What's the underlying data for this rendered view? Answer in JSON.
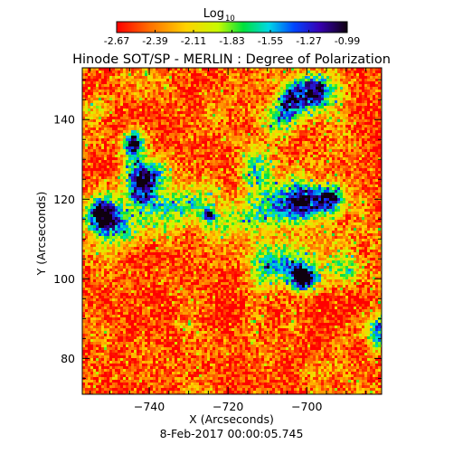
{
  "chart_data": {
    "type": "heatmap",
    "title": "Hinode SOT/SP - MERLIN : Degree of Polarization",
    "colorbar": {
      "title_base": "Log",
      "title_subscript": "10",
      "ticks": [
        "-2.67",
        "-2.39",
        "-2.11",
        "-1.83",
        "-1.55",
        "-1.27",
        "-0.99"
      ],
      "range": [
        -2.67,
        -0.99
      ],
      "colormap": "rainbow (red to violet/black)"
    },
    "xlabel": "X (Arcseconds)",
    "ylabel": "Y (Arcseconds)",
    "xlim": [
      -757,
      -681
    ],
    "ylim": [
      71,
      153
    ],
    "xticks": [
      -740,
      -720,
      -700
    ],
    "yticks": [
      80,
      100,
      120,
      140
    ],
    "date_label": "8-Feb-2017 00:00:05.745",
    "background_level": -2.5,
    "features": [
      {
        "x": -744,
        "y": 134,
        "sx": 1.8,
        "sy": 2.4,
        "amp": 1.7
      },
      {
        "x": -742,
        "y": 124,
        "sx": 2.8,
        "sy": 3.5,
        "amp": 1.2
      },
      {
        "x": -739,
        "y": 127,
        "sx": 4.0,
        "sy": 3.0,
        "amp": 0.7
      },
      {
        "x": -752,
        "y": 116,
        "sx": 2.6,
        "sy": 3.2,
        "amp": 1.4
      },
      {
        "x": -749,
        "y": 113,
        "sx": 4.0,
        "sy": 4.0,
        "amp": 0.55
      },
      {
        "x": -741,
        "y": 116,
        "sx": 7.0,
        "sy": 5.0,
        "amp": 0.45
      },
      {
        "x": -729,
        "y": 119,
        "sx": 5.0,
        "sy": 3.0,
        "amp": 0.6
      },
      {
        "x": -719,
        "y": 114,
        "sx": 6.0,
        "sy": 3.0,
        "amp": 0.5
      },
      {
        "x": -725,
        "y": 116,
        "sx": 1.2,
        "sy": 1.2,
        "amp": 1.0
      },
      {
        "x": -701,
        "y": 120,
        "sx": 3.0,
        "sy": 3.5,
        "amp": 1.3
      },
      {
        "x": -694,
        "y": 120,
        "sx": 2.3,
        "sy": 2.6,
        "amp": 1.7
      },
      {
        "x": -708,
        "y": 118,
        "sx": 5.0,
        "sy": 4.0,
        "amp": 0.8
      },
      {
        "x": -704,
        "y": 145,
        "sx": 2.5,
        "sy": 3.0,
        "amp": 1.1
      },
      {
        "x": -698,
        "y": 147,
        "sx": 3.5,
        "sy": 3.0,
        "amp": 1.35
      },
      {
        "x": -707,
        "y": 140,
        "sx": 3.0,
        "sy": 3.0,
        "amp": 0.9
      },
      {
        "x": -701,
        "y": 100,
        "sx": 2.2,
        "sy": 2.2,
        "amp": 1.6
      },
      {
        "x": -705,
        "y": 104,
        "sx": 4.0,
        "sy": 4.0,
        "amp": 0.8
      },
      {
        "x": -711,
        "y": 102,
        "sx": 3.0,
        "sy": 3.5,
        "amp": 0.7
      },
      {
        "x": -690,
        "y": 103,
        "sx": 3.0,
        "sy": 3.0,
        "amp": 0.7
      },
      {
        "x": -713,
        "y": 128,
        "sx": 3.0,
        "sy": 4.0,
        "amp": 0.7
      },
      {
        "x": -682,
        "y": 86,
        "sx": 2.0,
        "sy": 3.0,
        "amp": 1.1
      },
      {
        "x": -753,
        "y": 143,
        "sx": 2.5,
        "sy": 2.5,
        "amp": 0.5
      }
    ]
  }
}
